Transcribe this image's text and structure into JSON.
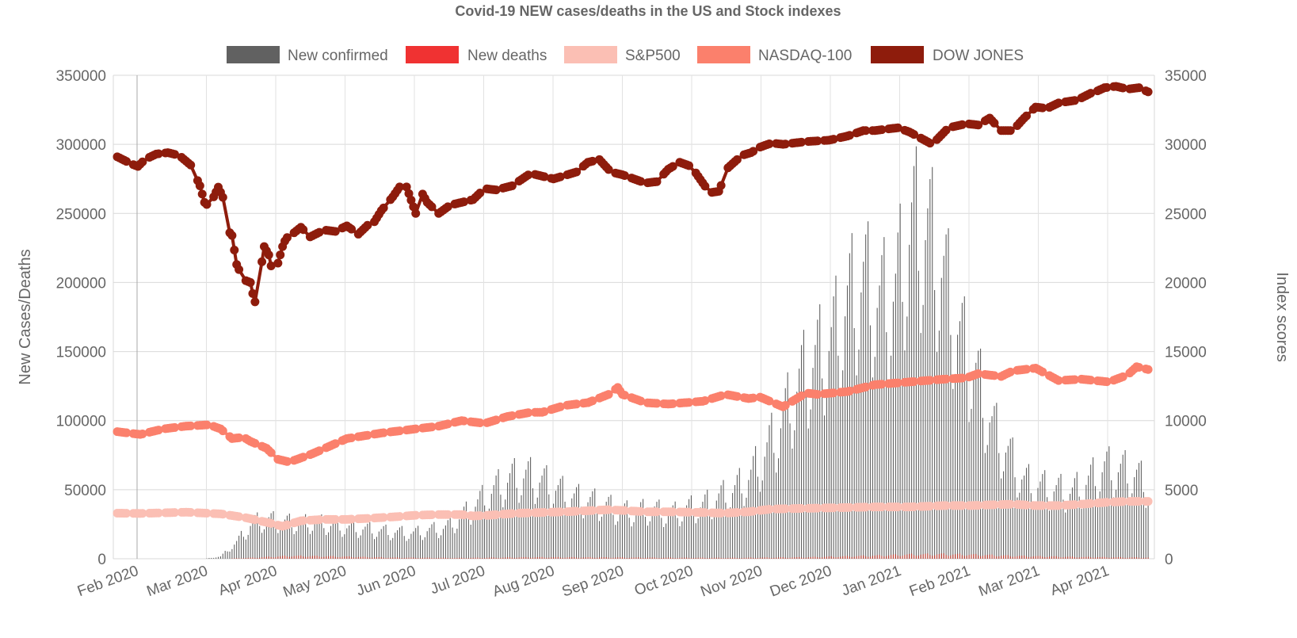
{
  "chart_data": {
    "type": "bar+line",
    "title": "Covid-19 NEW cases/deaths in the US and Stock indexes",
    "ylabel_left": "New Cases/Deaths",
    "ylabel_right": "Index scores",
    "ylim_left": [
      0,
      350000
    ],
    "ylim_right": [
      0,
      35000
    ],
    "yticks_left": [
      "350000",
      "300000",
      "250000",
      "200000",
      "150000",
      "100000",
      "50000",
      "0"
    ],
    "yticks_right": [
      "35000",
      "30000",
      "25000",
      "20000",
      "15000",
      "10000",
      "5000",
      "0"
    ],
    "x_labels": [
      "Feb 2020",
      "Mar 2020",
      "Apr 2020",
      "May 2020",
      "Jun 2020",
      "Jul 2020",
      "Aug 2020",
      "Sep 2020",
      "Oct 2020",
      "Nov 2020",
      "Dec 2020",
      "Jan 2021",
      "Feb 2021",
      "Mar 2021",
      "Apr 2021"
    ],
    "x_range_days": [
      0,
      450
    ],
    "grid": true,
    "legend_position": "top",
    "legend": [
      {
        "name": "New confirmed",
        "color": "#616161"
      },
      {
        "name": "New deaths",
        "color": "#f03232"
      },
      {
        "name": "S&P500",
        "color": "#fbbfb4"
      },
      {
        "name": "NASDAQ-100",
        "color": "#fb806c"
      },
      {
        "name": "DOW JONES",
        "color": "#8e1c0c"
      }
    ],
    "series": {
      "new_confirmed_weekly_peaks": {
        "axis": "left",
        "days": [
          0,
          38,
          45,
          52,
          59,
          66,
          73,
          80,
          87,
          94,
          101,
          108,
          115,
          122,
          129,
          136,
          143,
          150,
          157,
          164,
          171,
          178,
          185,
          192,
          199,
          206,
          213,
          220,
          227,
          234,
          241,
          248,
          255,
          262,
          269,
          276,
          283,
          290,
          297,
          304,
          311,
          318,
          325,
          332,
          339,
          346,
          353,
          360,
          367,
          374,
          381,
          388,
          395,
          402,
          409,
          416,
          423,
          430,
          437,
          444,
          449
        ],
        "values": [
          0,
          0,
          2000,
          15000,
          33000,
          35000,
          33000,
          32000,
          33000,
          30000,
          28000,
          27000,
          25000,
          24000,
          23000,
          26000,
          28000,
          38000,
          50000,
          62000,
          72000,
          75000,
          70000,
          62000,
          55000,
          52000,
          48000,
          42000,
          43000,
          44000,
          40000,
          45000,
          48000,
          55000,
          62000,
          75000,
          98000,
          125000,
          160000,
          180000,
          195000,
          230000,
          250000,
          230000,
          240000,
          300000,
          295000,
          255000,
          200000,
          165000,
          120000,
          95000,
          70000,
          65000,
          62000,
          60000,
          70000,
          82000,
          80000,
          75000,
          65000
        ]
      },
      "new_deaths_weekly_peaks": {
        "axis": "left",
        "days": [
          0,
          45,
          60,
          75,
          90,
          120,
          150,
          180,
          210,
          240,
          270,
          300,
          330,
          345,
          360,
          375,
          390,
          420,
          449
        ],
        "values": [
          0,
          0,
          1000,
          2500,
          2200,
          1000,
          700,
          1300,
          1200,
          900,
          800,
          1300,
          2700,
          3700,
          4000,
          3500,
          2500,
          1500,
          1000
        ]
      },
      "sp500": {
        "axis": "right",
        "days": [
          0,
          10,
          30,
          45,
          55,
          58,
          66,
          72,
          80,
          90,
          100,
          110,
          122,
          130,
          140,
          150,
          155,
          162,
          170,
          175,
          185,
          195,
          205,
          214,
          220,
          230,
          240,
          255,
          264,
          275,
          285,
          300,
          315,
          330,
          345,
          360,
          372,
          380,
          390,
          400,
          410,
          420,
          432,
          440,
          444,
          449
        ],
        "values": [
          3300,
          3280,
          3370,
          3250,
          3000,
          2900,
          2600,
          2350,
          2750,
          2850,
          2850,
          2930,
          3050,
          3150,
          3200,
          3200,
          3100,
          3150,
          3250,
          3300,
          3350,
          3400,
          3480,
          3550,
          3500,
          3400,
          3400,
          3350,
          3300,
          3400,
          3600,
          3650,
          3700,
          3750,
          3750,
          3850,
          3850,
          3900,
          3950,
          3850,
          3850,
          3950,
          4100,
          4150,
          4150,
          4150
        ]
      },
      "nasdaq100": {
        "axis": "right",
        "days": [
          0,
          10,
          20,
          30,
          40,
          45,
          50,
          55,
          58,
          65,
          70,
          75,
          85,
          100,
          115,
          130,
          140,
          150,
          160,
          170,
          180,
          185,
          195,
          205,
          214,
          218,
          220,
          230,
          240,
          255,
          265,
          275,
          280,
          290,
          295,
          300,
          305,
          318,
          330,
          345,
          360,
          370,
          375,
          385,
          390,
          400,
          410,
          420,
          432,
          440,
          444,
          449
        ],
        "values": [
          9200,
          9000,
          9400,
          9600,
          9700,
          9400,
          8700,
          8800,
          8500,
          8000,
          7200,
          7000,
          7600,
          8700,
          9100,
          9400,
          9600,
          10000,
          9800,
          10300,
          10600,
          10600,
          11100,
          11300,
          11900,
          12400,
          11900,
          11300,
          11200,
          11400,
          11900,
          11600,
          11700,
          11000,
          11500,
          12000,
          11900,
          12100,
          12600,
          12800,
          13000,
          13100,
          13400,
          13200,
          13600,
          13800,
          12900,
          13000,
          12800,
          13300,
          13900,
          13700
        ]
      },
      "dow_jones": {
        "axis": "right",
        "days": [
          0,
          6,
          9,
          12,
          17,
          22,
          27,
          32,
          36,
          38,
          40,
          44,
          47,
          48,
          50,
          52,
          55,
          58,
          59,
          60,
          63,
          64,
          66,
          67,
          70,
          72,
          73,
          75,
          77,
          80,
          84,
          90,
          95,
          100,
          105,
          110,
          112,
          115,
          120,
          125,
          130,
          133,
          135,
          140,
          145,
          150,
          155,
          160,
          165,
          172,
          180,
          190,
          200,
          205,
          210,
          215,
          220,
          225,
          230,
          235,
          240,
          245,
          250,
          258,
          262,
          266,
          272,
          276,
          280,
          285,
          290,
          300,
          310,
          318,
          325,
          330,
          340,
          345,
          355,
          362,
          370,
          375,
          380,
          385,
          390,
          395,
          400,
          405,
          410,
          418,
          424,
          426,
          430,
          435,
          440,
          445,
          449
        ],
        "values": [
          29100,
          28600,
          28400,
          28900,
          29300,
          29400,
          29200,
          28500,
          27000,
          25800,
          25500,
          26900,
          25800,
          23800,
          23400,
          21300,
          20200,
          20000,
          19200,
          18600,
          21500,
          22600,
          22000,
          21200,
          21400,
          22600,
          23000,
          23500,
          23600,
          24000,
          23300,
          23800,
          23700,
          24100,
          23500,
          24300,
          24400,
          25200,
          26200,
          27400,
          25000,
          26400,
          25800,
          25000,
          25600,
          25800,
          26000,
          26800,
          26700,
          27000,
          27900,
          27500,
          28000,
          28700,
          28900,
          28000,
          27800,
          27500,
          27200,
          27300,
          28200,
          28700,
          28400,
          26500,
          26600,
          28300,
          29200,
          29400,
          29800,
          30100,
          30000,
          30200,
          30300,
          30600,
          31000,
          31000,
          31200,
          30900,
          30000,
          31200,
          31500,
          31400,
          31900,
          31000,
          31000,
          31900,
          32700,
          32600,
          33000,
          33200,
          33700,
          33800,
          34100,
          34200,
          34000,
          34100,
          33800
        ]
      }
    }
  }
}
